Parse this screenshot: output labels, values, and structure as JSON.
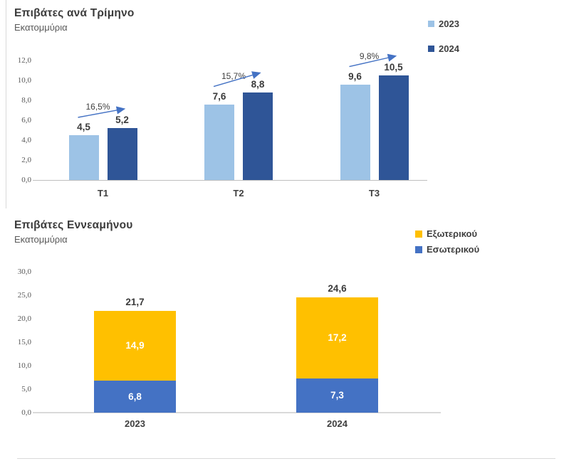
{
  "page": {
    "background": "#FFFFFF",
    "colors": {
      "light_blue": "#9DC3E6",
      "dark_blue": "#2F5597",
      "yellow": "#FFC000",
      "blue": "#4472C4",
      "axis_gray": "#D9D9D9",
      "arrow_blue": "#4472C4"
    }
  },
  "chart_data": [
    {
      "type": "bar",
      "title": "Επιβάτες ανά Τρίμηνο",
      "subtitle": "Εκατομμύρια",
      "categories": [
        "T1",
        "T2",
        "T3"
      ],
      "series": [
        {
          "name": "2023",
          "color": "#9DC3E6",
          "values": [
            4.5,
            7.6,
            9.6
          ],
          "value_labels": [
            "4,5",
            "7,6",
            "9,6"
          ]
        },
        {
          "name": "2024",
          "color": "#2F5597",
          "values": [
            5.2,
            8.8,
            10.5
          ],
          "value_labels": [
            "5,2",
            "8,8",
            "10,5"
          ]
        }
      ],
      "growth_labels": [
        "16,5%",
        "15,7%",
        "9,8%"
      ],
      "ylim": [
        0,
        12
      ],
      "ytick_labels": [
        "12,0",
        "10,0",
        "8,0",
        "6,0",
        "4,0",
        "2,0",
        "0,0"
      ],
      "legend_position": "top-right",
      "grid": false
    },
    {
      "type": "stacked-bar",
      "title": "Επιβάτες Εννεαμήνου",
      "subtitle": "Εκατομμύρια",
      "categories": [
        "2023",
        "2024"
      ],
      "series": [
        {
          "name": "Εξωτερικού",
          "color": "#FFC000",
          "values": [
            14.9,
            17.2
          ],
          "value_labels": [
            "14,9",
            "17,2"
          ]
        },
        {
          "name": "Εσωτερικού",
          "color": "#4472C4",
          "values": [
            6.8,
            7.3
          ],
          "value_labels": [
            "6,8",
            "7,3"
          ]
        }
      ],
      "totals": [
        21.7,
        24.6
      ],
      "total_labels": [
        "21,7",
        "24,6"
      ],
      "ylim": [
        0,
        30
      ],
      "ytick_labels": [
        "30,0",
        "25,0",
        "20,0",
        "15,0",
        "10,0",
        "5,0",
        "0,0"
      ],
      "legend_position": "top-right",
      "grid": false
    }
  ]
}
